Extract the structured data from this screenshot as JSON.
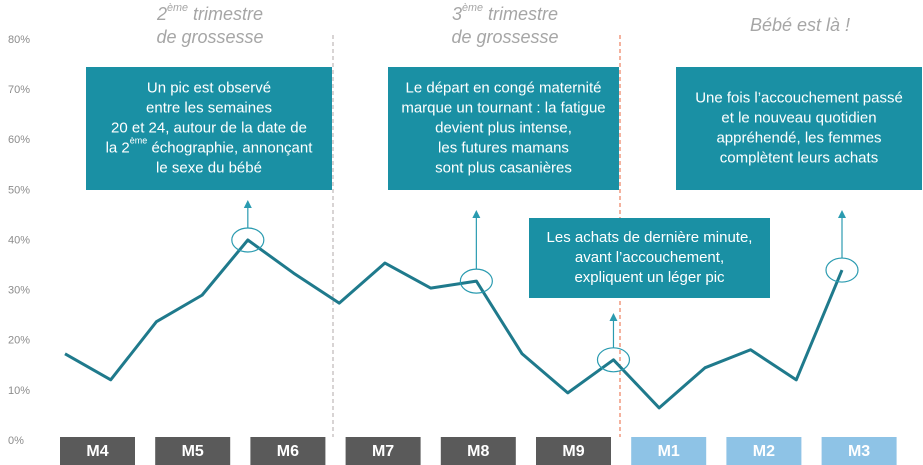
{
  "chart_data": {
    "type": "line",
    "color": "#1f7a8c",
    "values": [
      17.4,
      12.2,
      23.8,
      29.1,
      40.1,
      33.5,
      27.5,
      35.5,
      30.5,
      31.9,
      17.4,
      9.6,
      16.2,
      6.6,
      14.6,
      18.2,
      12.2,
      34.1
    ],
    "ylim": [
      0,
      80
    ],
    "yticks": [
      {
        "value": 0,
        "label": "0%"
      },
      {
        "value": 10,
        "label": "10%"
      },
      {
        "value": 20,
        "label": "20%"
      },
      {
        "value": 30,
        "label": "30%"
      },
      {
        "value": 40,
        "label": "40%"
      },
      {
        "value": 50,
        "label": "50%"
      },
      {
        "value": 60,
        "label": "60%"
      },
      {
        "value": 70,
        "label": "70%"
      },
      {
        "value": 80,
        "label": "80%"
      }
    ],
    "month_groups": [
      {
        "color": "#5a5a5a",
        "labels": [
          "M4",
          "M5",
          "M6",
          "M7",
          "M8",
          "M9"
        ]
      },
      {
        "color": "#8ec3e6",
        "labels": [
          "M1",
          "M2",
          "M3"
        ]
      }
    ],
    "phases": [
      {
        "lines": [
          {
            "text": "2",
            "sup": "ème",
            "rest": " trimestre"
          },
          "de grossesse"
        ]
      },
      {
        "lines": [
          {
            "text": "3",
            "sup": "ème",
            "rest": " trimestre"
          },
          "de grossesse"
        ]
      },
      {
        "lines": [
          "Bébé est là !"
        ]
      }
    ],
    "annotations": [
      {
        "point": 4,
        "lines": [
          "Un pic est observé",
          "entre les semaines",
          "20 et 24, autour de la date de",
          {
            "text": "la 2",
            "sup": "ème",
            "rest": " échographie, annonçant"
          },
          "le sexe du bébé"
        ]
      },
      {
        "point": 9,
        "lines": [
          "Le départ en congé maternité",
          "marque un tournant : la fatigue",
          "devient plus intense,",
          "les futures mamans",
          "sont plus casanières"
        ]
      },
      {
        "point": 12,
        "lines": [
          "Les achats de dernière minute,",
          "avant l’accouchement,",
          "expliquent un léger pic"
        ]
      },
      {
        "point": 17,
        "lines": [
          "Une fois l’accouchement passé",
          "et le nouveau quotidien",
          "appréhendé, les femmes",
          "complètent leurs achats"
        ]
      }
    ]
  }
}
